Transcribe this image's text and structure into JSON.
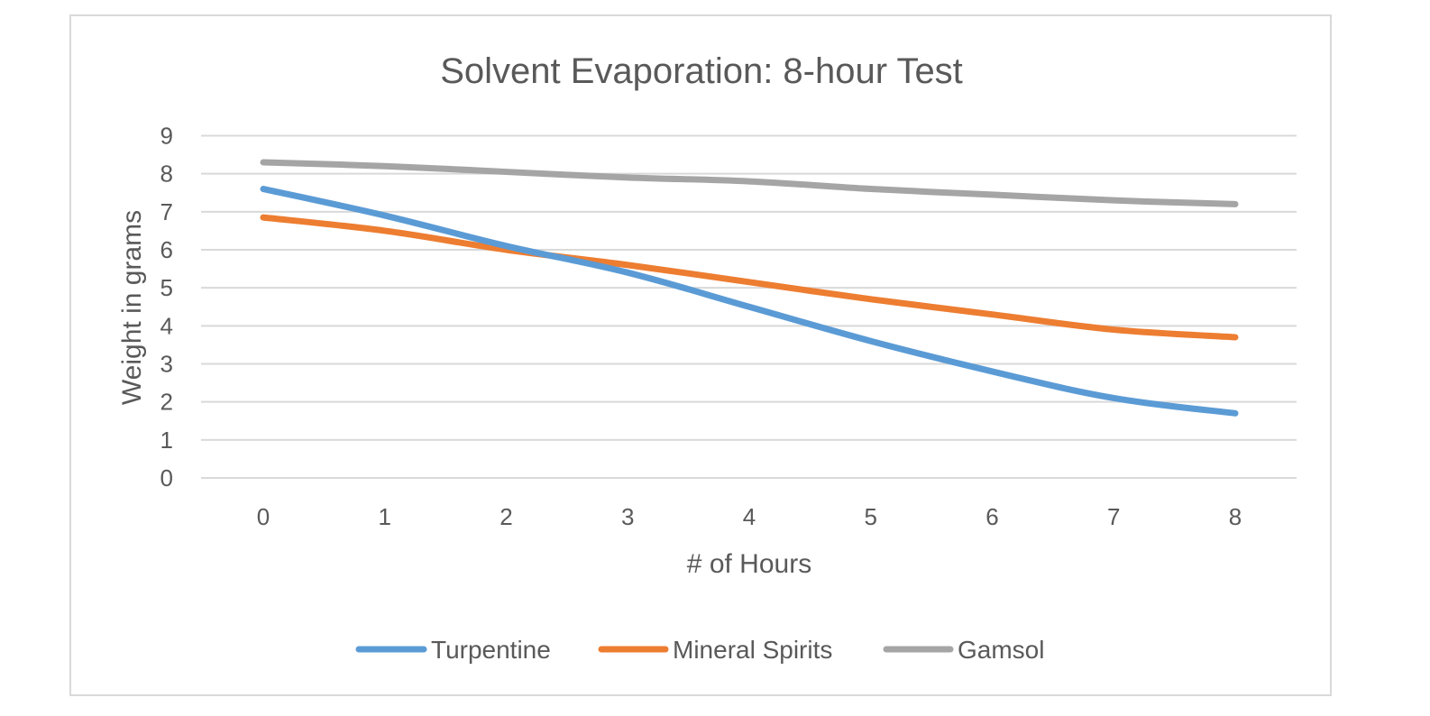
{
  "chart_data": {
    "type": "line",
    "title": "Solvent Evaporation: 8-hour Test",
    "xlabel": "# of Hours",
    "ylabel": "Weight in grams",
    "x": [
      0,
      1,
      2,
      3,
      4,
      5,
      6,
      7,
      8
    ],
    "x_tick_labels": [
      "0",
      "1",
      "2",
      "3",
      "4",
      "5",
      "6",
      "7",
      "8"
    ],
    "y_tick_labels": [
      "0",
      "1",
      "2",
      "3",
      "4",
      "5",
      "6",
      "7",
      "8",
      "9"
    ],
    "ylim": [
      0,
      9
    ],
    "grid": true,
    "legend_position": "bottom",
    "series": [
      {
        "name": "Turpentine",
        "color": "#5b9bd5",
        "values": [
          7.6,
          6.9,
          6.1,
          5.4,
          4.5,
          3.6,
          2.8,
          2.1,
          1.7
        ]
      },
      {
        "name": "Mineral Spirits",
        "color": "#ed7d31",
        "values": [
          6.85,
          6.5,
          6.0,
          5.6,
          5.15,
          4.7,
          4.3,
          3.9,
          3.7
        ]
      },
      {
        "name": "Gamsol",
        "color": "#a5a5a5",
        "values": [
          8.3,
          8.2,
          8.05,
          7.9,
          7.8,
          7.6,
          7.45,
          7.3,
          7.2
        ]
      }
    ]
  }
}
